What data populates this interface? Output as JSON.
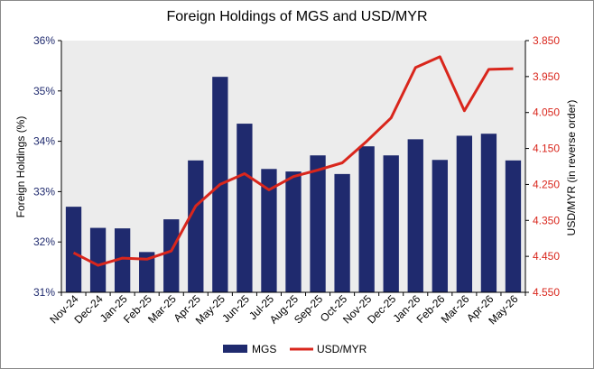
{
  "chart_data": {
    "type": "bar",
    "title": "Foreign Holdings of MGS and USD/MYR",
    "categories": [
      "Nov-24",
      "Dec-24",
      "Jan-25",
      "Feb-25",
      "Mar-25",
      "Apr-25",
      "May-25",
      "Jun-25",
      "Jul-25",
      "Aug-25",
      "Sep-25",
      "Oct-25",
      "Nov-25",
      "Dec-25",
      "Jan-26",
      "Feb-26",
      "Mar-26",
      "Apr-26",
      "May-26"
    ],
    "ylabel": "Foreign Holdings (%)",
    "y2label": "USD/MYR (in reverse order)",
    "ylim": [
      31,
      36
    ],
    "y2lim": [
      3.85,
      4.55
    ],
    "y2_reversed": true,
    "yticks": [
      "31%",
      "32%",
      "33%",
      "34%",
      "35%",
      "36%"
    ],
    "y2ticks": [
      "3.850",
      "3.950",
      "4.050",
      "4.150",
      "4.250",
      "4.350",
      "4.450",
      "4.550"
    ],
    "legend_position": "bottom",
    "grid": false,
    "series": [
      {
        "name": "MGS",
        "type": "bar",
        "axis": "left",
        "color": "#1f2a6e",
        "values": [
          32.7,
          32.28,
          32.27,
          31.8,
          32.45,
          33.62,
          35.28,
          34.35,
          33.45,
          33.4,
          33.72,
          33.35,
          33.9,
          33.72,
          34.04,
          33.63,
          34.11,
          34.15,
          33.62
        ]
      },
      {
        "name": "USD/MYR",
        "type": "line",
        "axis": "right",
        "color": "#d9261c",
        "values": [
          4.44,
          4.475,
          4.455,
          4.458,
          4.435,
          4.31,
          4.25,
          4.22,
          4.265,
          4.228,
          4.21,
          4.19,
          4.13,
          4.065,
          3.925,
          3.895,
          4.045,
          3.93,
          3.928
        ]
      }
    ]
  }
}
